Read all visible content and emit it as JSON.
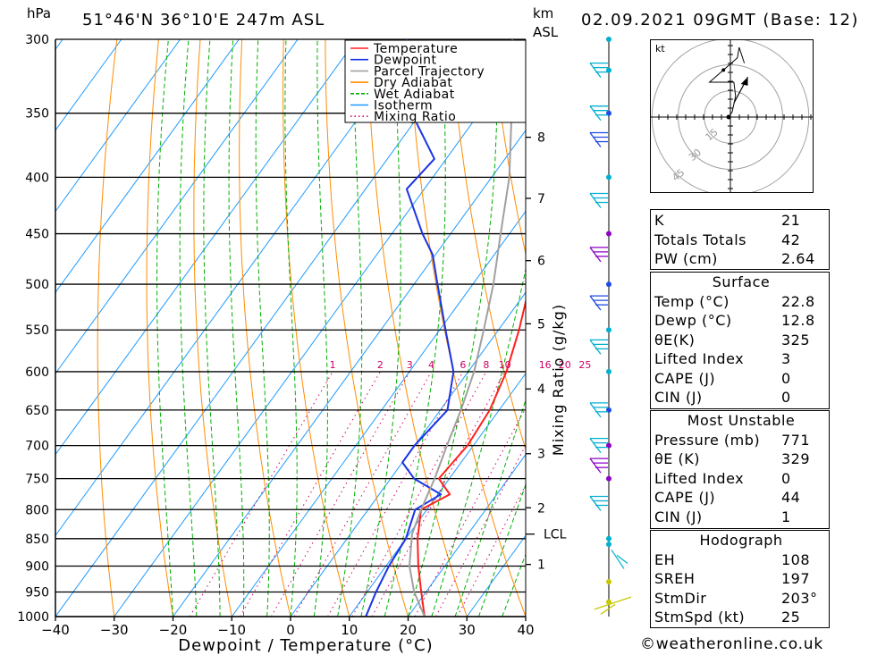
{
  "header": {
    "location": "51°46'N  36°10'E  247m  ASL",
    "datetime": "02.09.2021  09GMT  (Base: 12)",
    "hpa_label": "hPa",
    "km_label": "km",
    "asl_label": "ASL"
  },
  "chart_data": {
    "type": "line",
    "xlabel": "Dewpoint / Temperature (°C)",
    "ylabel": "hPa",
    "right_axis_label": "Mixing Ratio (g/kg)",
    "xlim": [
      -40,
      40
    ],
    "ylim": [
      1000,
      300
    ],
    "x_ticks": [
      -40,
      -30,
      -20,
      -10,
      0,
      10,
      20,
      30,
      40
    ],
    "pressure_levels": [
      300,
      350,
      400,
      450,
      500,
      550,
      600,
      650,
      700,
      750,
      800,
      850,
      900,
      950,
      1000
    ],
    "km_ticks": [
      {
        "label": "8",
        "p": 368
      },
      {
        "label": "7",
        "p": 418
      },
      {
        "label": "6",
        "p": 476
      },
      {
        "label": "5",
        "p": 543
      },
      {
        "label": "4",
        "p": 622
      },
      {
        "label": "3",
        "p": 712
      },
      {
        "label": "2",
        "p": 797
      },
      {
        "label": "1",
        "p": 897
      }
    ],
    "lcl": {
      "label": "LCL",
      "p": 842
    },
    "mixing_ratio_labels": [
      "1",
      "2",
      "3",
      "4",
      "6",
      "8",
      "10",
      "16",
      "20",
      "25"
    ],
    "mixing_ratio_values": [
      1,
      2,
      3,
      4,
      6,
      8,
      10,
      16,
      20,
      25
    ],
    "legend": [
      {
        "name": "Temperature",
        "color": "#ff2020",
        "dash": "solid"
      },
      {
        "name": "Dewpoint",
        "color": "#1a33e6",
        "dash": "solid"
      },
      {
        "name": "Parcel Trajectory",
        "color": "#a0a0a0",
        "dash": "solid"
      },
      {
        "name": "Dry Adiabat",
        "color": "#ff8c00",
        "dash": "solid"
      },
      {
        "name": "Wet Adiabat",
        "color": "#00b000",
        "dash": "dashed"
      },
      {
        "name": "Isotherm",
        "color": "#1e9bff",
        "dash": "solid"
      },
      {
        "name": "Mixing Ratio",
        "color": "#cc0066",
        "dash": "dotted"
      }
    ],
    "series": [
      {
        "name": "Temperature",
        "color": "#ff2020",
        "points": [
          [
            1000,
            22.8
          ],
          [
            950,
            19.2
          ],
          [
            900,
            15.5
          ],
          [
            850,
            12.0
          ],
          [
            800,
            9.0
          ],
          [
            775,
            12.0
          ],
          [
            750,
            8.2
          ],
          [
            700,
            9.0
          ],
          [
            650,
            8.4
          ],
          [
            600,
            6.5
          ],
          [
            550,
            3.5
          ],
          [
            500,
            -0.3
          ],
          [
            450,
            -4.9
          ],
          [
            400,
            -10.5
          ],
          [
            350,
            -17.3
          ],
          [
            300,
            -25.8
          ]
        ]
      },
      {
        "name": "Dewpoint",
        "color": "#1a33e6",
        "points": [
          [
            1000,
            12.8
          ],
          [
            950,
            11.5
          ],
          [
            900,
            10.5
          ],
          [
            850,
            10.0
          ],
          [
            800,
            8.0
          ],
          [
            775,
            10.5
          ],
          [
            750,
            4.0
          ],
          [
            725,
            0.0
          ],
          [
            700,
            0.0
          ],
          [
            650,
            1.2
          ],
          [
            600,
            -2.5
          ],
          [
            550,
            -9.0
          ],
          [
            500,
            -16.0
          ],
          [
            470,
            -20.5
          ],
          [
            450,
            -24.8
          ],
          [
            410,
            -33.0
          ],
          [
            385,
            -32.0
          ],
          [
            350,
            -41.5
          ],
          [
            320,
            -48.0
          ],
          [
            300,
            -51.5
          ]
        ]
      },
      {
        "name": "Parcel Trajectory",
        "color": "#a0a0a0",
        "points": [
          [
            1000,
            22.8
          ],
          [
            950,
            18.0
          ],
          [
            900,
            14.0
          ],
          [
            842,
            10.5
          ],
          [
            800,
            9.0
          ],
          [
            750,
            7.5
          ],
          [
            700,
            5.5
          ],
          [
            650,
            3.5
          ],
          [
            600,
            1.0
          ],
          [
            550,
            -2.5
          ],
          [
            500,
            -6.5
          ],
          [
            450,
            -11.5
          ],
          [
            400,
            -17.0
          ],
          [
            350,
            -24.5
          ],
          [
            300,
            -33.5
          ]
        ]
      }
    ]
  },
  "wind_colors": {
    "low": "#c8c800",
    "mid": "#00b0d0",
    "high": "#1e4be6",
    "purple": "#8c00c8"
  },
  "hodograph": {
    "units_label": "kt",
    "ring_labels": [
      "15",
      "30",
      "45"
    ],
    "ring_values": [
      15,
      30,
      45
    ]
  },
  "indices": {
    "k_label": "K",
    "k": "21",
    "tt_label": "Totals Totals",
    "tt": "42",
    "pw_label": "PW (cm)",
    "pw": "2.64"
  },
  "surface": {
    "title": "Surface",
    "temp_label": "Temp (°C)",
    "temp": "22.8",
    "dewp_label": "Dewp (°C)",
    "dewp": "12.8",
    "thetae_label": "θE(K)",
    "thetae": "325",
    "li_label": "Lifted Index",
    "li": "3",
    "cape_label": "CAPE (J)",
    "cape": "0",
    "cin_label": "CIN (J)",
    "cin": "0"
  },
  "most_unstable": {
    "title": "Most Unstable",
    "pressure_label": "Pressure (mb)",
    "pressure": "771",
    "thetae_label": "θE (K)",
    "thetae": "329",
    "li_label": "Lifted Index",
    "li": "0",
    "cape_label": "CAPE (J)",
    "cape": "44",
    "cin_label": "CIN (J)",
    "cin": "1"
  },
  "hodograph_stats": {
    "title": "Hodograph",
    "eh_label": "EH",
    "eh": "108",
    "sreh_label": "SREH",
    "sreh": "197",
    "stmdir_label": "StmDir",
    "stmdir": "203°",
    "stmspd_label": "StmSpd (kt)",
    "stmspd": "25"
  },
  "footer": {
    "copyright": "©weatheronline.co.uk"
  }
}
